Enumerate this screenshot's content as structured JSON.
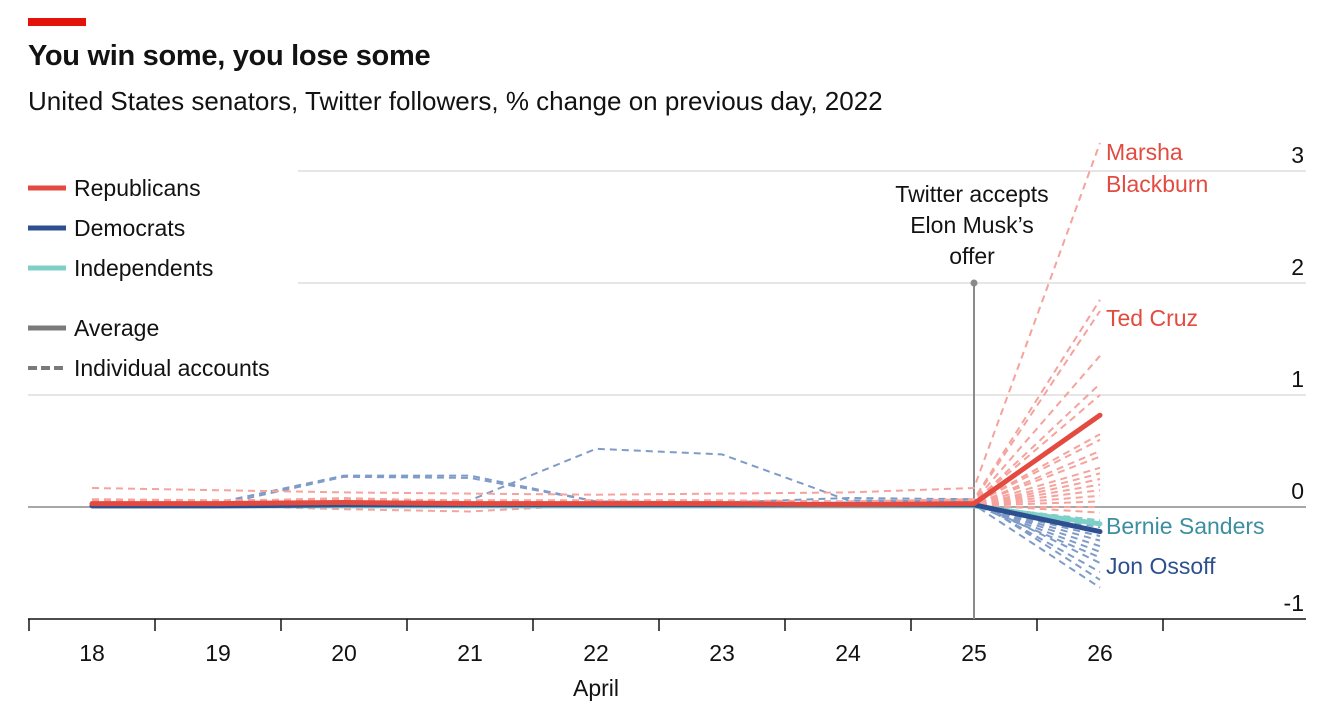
{
  "header": {
    "title": "You win some, you lose some",
    "subtitle": "United States senators, Twitter followers, % change on previous day, 2022"
  },
  "colors": {
    "accent": "#e3120b",
    "republicans": "#e34a40",
    "republicans_light": "#f4a39d",
    "democrats": "#2e4f8f",
    "democrats_light": "#7f9bc7",
    "independents": "#7fcfc9",
    "bernie_label": "#3c8fa0",
    "average_legend": "#7a7a7a"
  },
  "legend": {
    "republicans": "Republicans",
    "democrats": "Democrats",
    "independents": "Independents",
    "average": "Average",
    "individual": "Individual accounts"
  },
  "annotation": {
    "line1": "Twitter accepts",
    "line2": "Elon Musk’s",
    "line3": "offer"
  },
  "labels": {
    "marsha1": "Marsha",
    "marsha2": "Blackburn",
    "cruz": "Ted Cruz",
    "sanders": "Bernie Sanders",
    "ossoff": "Jon Ossoff"
  },
  "chart_data": {
    "type": "line",
    "x": [
      18,
      19,
      20,
      21,
      22,
      23,
      24,
      25,
      26
    ],
    "x_tick_labels": [
      "18",
      "19",
      "20",
      "21",
      "22",
      "23",
      "24",
      "25",
      "26"
    ],
    "xlabel": "April",
    "ylim": [
      -1,
      3
    ],
    "y_ticks": [
      3,
      2,
      1,
      0,
      -1
    ],
    "y_tick_labels": [
      "3",
      "2",
      "1",
      "0",
      "-1"
    ],
    "grid": true,
    "legend_position": "top-left",
    "annotation_x": 25,
    "series": [
      {
        "name": "Republicans",
        "kind": "average",
        "values": [
          0.03,
          0.03,
          0.04,
          0.03,
          0.03,
          0.03,
          0.02,
          0.03,
          0.82
        ]
      },
      {
        "name": "Democrats",
        "kind": "average",
        "values": [
          0.01,
          0.01,
          0.02,
          0.02,
          0.02,
          0.02,
          0.02,
          0.02,
          -0.22
        ]
      },
      {
        "name": "Independents",
        "kind": "average",
        "values": [
          0.01,
          0.01,
          0.01,
          0.01,
          0.01,
          0.01,
          0.01,
          0.01,
          -0.15
        ]
      },
      {
        "name": "Marsha Blackburn",
        "kind": "individual",
        "party": "republicans",
        "values": [
          0.17,
          0.15,
          0.13,
          0.12,
          0.11,
          0.12,
          0.13,
          0.17,
          3.25
        ]
      },
      {
        "name": "Ted Cruz",
        "kind": "individual",
        "party": "republicans",
        "values": [
          0.07,
          0.06,
          0.07,
          0.06,
          0.06,
          0.06,
          0.05,
          0.07,
          1.85
        ]
      },
      {
        "kind": "individual",
        "party": "republicans",
        "values": [
          0.06,
          0.05,
          0.08,
          0.05,
          0.04,
          0.05,
          0.05,
          0.06,
          1.75
        ]
      },
      {
        "kind": "individual",
        "party": "republicans",
        "values": [
          0.05,
          0.04,
          0.06,
          0.04,
          0.03,
          0.04,
          0.04,
          0.05,
          1.35
        ]
      },
      {
        "kind": "individual",
        "party": "republicans",
        "values": [
          0.04,
          0.04,
          0.05,
          0.04,
          0.04,
          0.03,
          0.03,
          0.04,
          1.1
        ]
      },
      {
        "kind": "individual",
        "party": "republicans",
        "values": [
          0.04,
          0.03,
          0.05,
          0.03,
          0.03,
          0.03,
          0.03,
          0.04,
          1.0
        ]
      },
      {
        "kind": "individual",
        "party": "republicans",
        "values": [
          0.03,
          0.03,
          0.04,
          0.03,
          0.02,
          0.03,
          0.02,
          0.03,
          0.65
        ]
      },
      {
        "kind": "individual",
        "party": "republicans",
        "values": [
          0.03,
          0.02,
          0.03,
          0.02,
          0.02,
          0.02,
          0.02,
          0.03,
          0.6
        ]
      },
      {
        "kind": "individual",
        "party": "republicans",
        "values": [
          0.02,
          0.02,
          0.03,
          0.02,
          0.02,
          0.02,
          0.02,
          0.02,
          0.5
        ]
      },
      {
        "kind": "individual",
        "party": "republicans",
        "values": [
          0.02,
          0.02,
          0.02,
          0.02,
          0.02,
          0.02,
          0.02,
          0.02,
          0.45
        ]
      },
      {
        "kind": "individual",
        "party": "republicans",
        "values": [
          0.02,
          0.01,
          0.02,
          0.01,
          0.01,
          0.01,
          0.01,
          0.02,
          0.35
        ]
      },
      {
        "kind": "individual",
        "party": "republicans",
        "values": [
          0.01,
          0.01,
          0.02,
          0.01,
          0.01,
          0.01,
          0.01,
          0.01,
          0.3
        ]
      },
      {
        "kind": "individual",
        "party": "republicans",
        "values": [
          0.01,
          0.01,
          0.01,
          0.01,
          0.01,
          0.01,
          0.01,
          0.01,
          0.25
        ]
      },
      {
        "kind": "individual",
        "party": "republicans",
        "values": [
          0.02,
          0.01,
          0.02,
          0.01,
          0.01,
          0.01,
          0.01,
          0.01,
          0.2
        ]
      },
      {
        "kind": "individual",
        "party": "republicans",
        "values": [
          0.01,
          0.01,
          0.01,
          0.01,
          0.01,
          0.01,
          0.01,
          0.01,
          0.15
        ]
      },
      {
        "kind": "individual",
        "party": "republicans",
        "values": [
          0.01,
          0.01,
          0.01,
          0.01,
          0.01,
          0.01,
          0.01,
          0.01,
          0.1
        ]
      },
      {
        "kind": "individual",
        "party": "republicans",
        "values": [
          0.01,
          0.0,
          0.01,
          0.0,
          0.0,
          0.0,
          0.0,
          0.01,
          0.05
        ]
      },
      {
        "kind": "individual",
        "party": "republicans",
        "values": [
          0.0,
          0.0,
          0.01,
          0.0,
          0.0,
          0.0,
          0.0,
          0.0,
          0.0
        ]
      },
      {
        "kind": "individual",
        "party": "republicans",
        "values": [
          0.02,
          0.01,
          -0.02,
          -0.04,
          0.02,
          0.01,
          0.01,
          0.02,
          -0.05
        ]
      },
      {
        "name": "Jon Ossoff",
        "kind": "individual",
        "party": "democrats",
        "values": [
          0.01,
          0.01,
          0.02,
          0.02,
          0.02,
          0.02,
          0.02,
          0.02,
          -0.72
        ]
      },
      {
        "kind": "individual",
        "party": "democrats",
        "values": [
          0.04,
          0.04,
          0.28,
          0.28,
          0.05,
          0.04,
          0.08,
          0.07,
          -0.65
        ]
      },
      {
        "kind": "individual",
        "party": "democrats",
        "values": [
          0.02,
          0.03,
          0.03,
          0.06,
          0.52,
          0.47,
          0.06,
          0.05,
          -0.58
        ]
      },
      {
        "kind": "individual",
        "party": "democrats",
        "values": [
          0.02,
          0.02,
          0.27,
          0.26,
          0.05,
          0.03,
          0.04,
          0.05,
          -0.5
        ]
      },
      {
        "kind": "individual",
        "party": "democrats",
        "values": [
          0.01,
          0.01,
          0.02,
          0.02,
          0.02,
          0.02,
          0.02,
          0.02,
          -0.45
        ]
      },
      {
        "kind": "individual",
        "party": "democrats",
        "values": [
          0.01,
          0.01,
          0.02,
          0.02,
          0.02,
          0.02,
          0.02,
          0.02,
          -0.4
        ]
      },
      {
        "kind": "individual",
        "party": "democrats",
        "values": [
          0.01,
          0.01,
          0.02,
          0.02,
          0.02,
          0.02,
          0.02,
          0.02,
          -0.35
        ]
      },
      {
        "kind": "individual",
        "party": "democrats",
        "values": [
          0.01,
          0.01,
          0.01,
          0.01,
          0.01,
          0.01,
          0.01,
          0.01,
          -0.3
        ]
      },
      {
        "kind": "individual",
        "party": "democrats",
        "values": [
          0.01,
          0.01,
          0.01,
          0.01,
          0.01,
          0.01,
          0.01,
          0.01,
          -0.26
        ]
      },
      {
        "kind": "individual",
        "party": "democrats",
        "values": [
          0.01,
          0.01,
          0.01,
          0.01,
          0.01,
          0.01,
          0.01,
          0.01,
          -0.22
        ]
      },
      {
        "kind": "individual",
        "party": "democrats",
        "values": [
          0.01,
          0.01,
          0.01,
          0.01,
          0.01,
          0.01,
          0.01,
          0.01,
          -0.18
        ]
      },
      {
        "kind": "individual",
        "party": "democrats",
        "values": [
          0.01,
          0.01,
          0.01,
          0.01,
          0.01,
          0.01,
          0.01,
          0.01,
          -0.12
        ]
      },
      {
        "name": "Bernie Sanders",
        "kind": "individual",
        "party": "independents",
        "values": [
          0.01,
          0.01,
          0.01,
          0.01,
          0.01,
          0.01,
          0.01,
          0.01,
          -0.17
        ]
      },
      {
        "kind": "individual",
        "party": "independents",
        "values": [
          0.01,
          0.01,
          0.01,
          0.01,
          0.01,
          0.01,
          0.01,
          0.01,
          -0.12
        ]
      }
    ]
  }
}
